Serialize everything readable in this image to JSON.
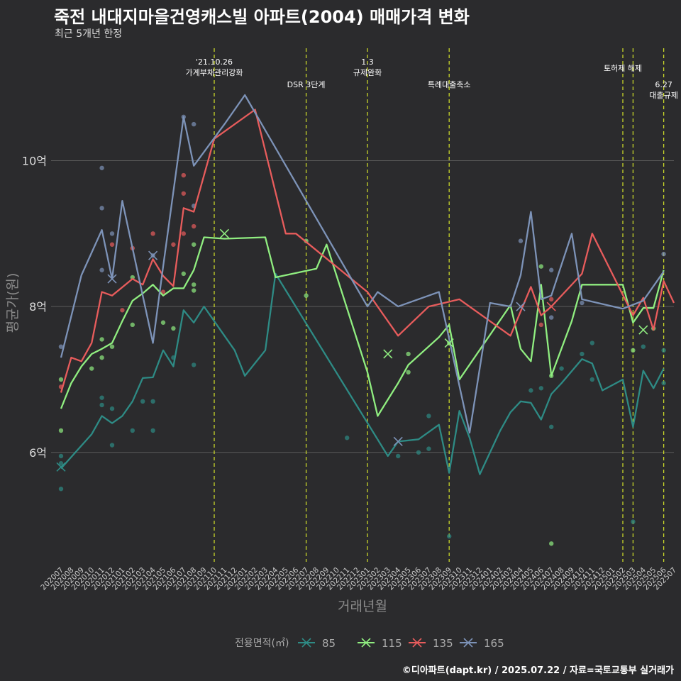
{
  "title": "죽전 내대지마을건영캐스빌 아파트(2004) 매매가격 변화",
  "subtitle": "최근 5개년 한정",
  "credit": "©디아파트(dapt.kr) / 2025.07.22 / 자료=국토교통부 실거래가",
  "colors": {
    "85": "#2e8b85",
    "115": "#90ee80",
    "135": "#e85c5c",
    "165": "#7d93b8",
    "vline": "#c8d62a",
    "grid": "#5a5a5a"
  },
  "chart_data": {
    "type": "line",
    "xlabel": "거래년월",
    "ylabel": "평균가(원)",
    "categories": [
      "202007",
      "202008",
      "202009",
      "202010",
      "202011",
      "202012",
      "202101",
      "202102",
      "202103",
      "202104",
      "202105",
      "202106",
      "202107",
      "202108",
      "202109",
      "202110",
      "202111",
      "202112",
      "202201",
      "202202",
      "202203",
      "202204",
      "202205",
      "202206",
      "202207",
      "202208",
      "202209",
      "202210",
      "202211",
      "202212",
      "202301",
      "202302",
      "202303",
      "202304",
      "202305",
      "202306",
      "202307",
      "202308",
      "202309",
      "202310",
      "202311",
      "202312",
      "202401",
      "202402",
      "202403",
      "202404",
      "202405",
      "202406",
      "202407",
      "202408",
      "202409",
      "202410",
      "202411",
      "202412",
      "202501",
      "202502",
      "202503",
      "202504",
      "202505",
      "202506",
      "202507"
    ],
    "yticks": [
      {
        "value": 6.0,
        "label": "6억"
      },
      {
        "value": 8.0,
        "label": "8억"
      },
      {
        "value": 10.0,
        "label": "10억"
      }
    ],
    "ylim": [
      4.5,
      11.6
    ],
    "legend": {
      "title": "전용면적(㎡)",
      "position": "bottom"
    },
    "series": [
      {
        "name": "85",
        "points": [
          [
            "202007",
            5.78
          ],
          [
            "202010",
            6.25
          ],
          [
            "202011",
            6.5
          ],
          [
            "202012",
            6.4
          ],
          [
            "202101",
            6.5
          ],
          [
            "202102",
            6.7
          ],
          [
            "202103",
            7.02
          ],
          [
            "202104",
            7.03
          ],
          [
            "202105",
            7.4
          ],
          [
            "202106",
            7.18
          ],
          [
            "202107",
            7.95
          ],
          [
            "202108",
            7.78
          ],
          [
            "202109",
            8.0
          ],
          [
            "202111",
            7.6
          ],
          [
            "202112",
            7.4
          ],
          [
            "202201",
            7.05
          ],
          [
            "202203",
            7.4
          ],
          [
            "202204",
            8.45
          ],
          [
            "202303",
            5.95
          ],
          [
            "202304",
            6.15
          ],
          [
            "202306",
            6.18
          ],
          [
            "202308",
            6.38
          ],
          [
            "202309",
            5.72
          ],
          [
            "202310",
            6.57
          ],
          [
            "202311",
            6.2
          ],
          [
            "202312",
            5.7
          ],
          [
            "202402",
            6.3
          ],
          [
            "202403",
            6.55
          ],
          [
            "202404",
            6.7
          ],
          [
            "202405",
            6.68
          ],
          [
            "202406",
            6.45
          ],
          [
            "202407",
            6.8
          ],
          [
            "202408",
            6.95
          ],
          [
            "202410",
            7.28
          ],
          [
            "202411",
            7.22
          ],
          [
            "202412",
            6.85
          ],
          [
            "202502",
            7.0
          ],
          [
            "202503",
            6.35
          ],
          [
            "202504",
            7.12
          ],
          [
            "202505",
            6.88
          ],
          [
            "202506",
            7.15
          ]
        ]
      },
      {
        "name": "115",
        "points": [
          [
            "202007",
            6.6
          ],
          [
            "202008",
            6.95
          ],
          [
            "202009",
            7.18
          ],
          [
            "202010",
            7.35
          ],
          [
            "202011",
            7.42
          ],
          [
            "202012",
            7.5
          ],
          [
            "202101",
            7.8
          ],
          [
            "202102",
            8.08
          ],
          [
            "202103",
            8.18
          ],
          [
            "202104",
            8.3
          ],
          [
            "202105",
            8.15
          ],
          [
            "202106",
            8.25
          ],
          [
            "202107",
            8.25
          ],
          [
            "202108",
            8.5
          ],
          [
            "202109",
            8.95
          ],
          [
            "202111",
            8.93
          ],
          [
            "202203",
            8.95
          ],
          [
            "202204",
            8.4
          ],
          [
            "202208",
            8.52
          ],
          [
            "202209",
            8.85
          ],
          [
            "202301",
            7.1
          ],
          [
            "202302",
            6.5
          ],
          [
            "202304",
            6.95
          ],
          [
            "202305",
            7.2
          ],
          [
            "202308",
            7.58
          ],
          [
            "202309",
            7.75
          ],
          [
            "202310",
            7.0
          ],
          [
            "202403",
            8.02
          ],
          [
            "202404",
            7.42
          ],
          [
            "202405",
            7.25
          ],
          [
            "202406",
            8.3
          ],
          [
            "202407",
            7.05
          ],
          [
            "202409",
            7.8
          ],
          [
            "202410",
            8.3
          ],
          [
            "202502",
            8.3
          ],
          [
            "202503",
            7.78
          ],
          [
            "202504",
            7.98
          ],
          [
            "202505",
            7.98
          ],
          [
            "202506",
            8.5
          ]
        ]
      },
      {
        "name": "135",
        "points": [
          [
            "202007",
            6.82
          ],
          [
            "202008",
            7.3
          ],
          [
            "202009",
            7.25
          ],
          [
            "202010",
            7.5
          ],
          [
            "202011",
            8.2
          ],
          [
            "202012",
            8.15
          ],
          [
            "202102",
            8.38
          ],
          [
            "202103",
            8.3
          ],
          [
            "202104",
            8.65
          ],
          [
            "202105",
            8.42
          ],
          [
            "202106",
            8.28
          ],
          [
            "202107",
            9.35
          ],
          [
            "202108",
            9.3
          ],
          [
            "202110",
            10.3
          ],
          [
            "202202",
            10.7
          ],
          [
            "202205",
            9.0
          ],
          [
            "202206",
            9.0
          ],
          [
            "202301",
            8.2
          ],
          [
            "202304",
            7.6
          ],
          [
            "202307",
            8.0
          ],
          [
            "202310",
            8.1
          ],
          [
            "202403",
            7.6
          ],
          [
            "202405",
            8.27
          ],
          [
            "202406",
            7.88
          ],
          [
            "202407",
            8.0
          ],
          [
            "202410",
            8.45
          ],
          [
            "202411",
            9.0
          ],
          [
            "202503",
            7.88
          ],
          [
            "202504",
            8.12
          ],
          [
            "202505",
            7.68
          ],
          [
            "202506",
            8.35
          ],
          [
            "202507",
            8.05
          ]
        ]
      },
      {
        "name": "165",
        "points": [
          [
            "202007",
            7.3
          ],
          [
            "202009",
            8.43
          ],
          [
            "202011",
            9.05
          ],
          [
            "202012",
            8.38
          ],
          [
            "202101",
            9.45
          ],
          [
            "202104",
            7.5
          ],
          [
            "202105",
            8.55
          ],
          [
            "202107",
            10.6
          ],
          [
            "202108",
            9.93
          ],
          [
            "202111",
            10.5
          ],
          [
            "202201",
            10.9
          ],
          [
            "202301",
            8.0
          ],
          [
            "202302",
            8.2
          ],
          [
            "202304",
            8.0
          ],
          [
            "202308",
            8.2
          ],
          [
            "202311",
            6.27
          ],
          [
            "202401",
            8.05
          ],
          [
            "202403",
            8.0
          ],
          [
            "202404",
            8.43
          ],
          [
            "202405",
            9.3
          ],
          [
            "202406",
            8.1
          ],
          [
            "202407",
            8.15
          ],
          [
            "202409",
            9.0
          ],
          [
            "202410",
            8.1
          ],
          [
            "202502",
            7.97
          ],
          [
            "202504",
            8.08
          ],
          [
            "202506",
            8.48
          ]
        ]
      }
    ],
    "scatter": [
      {
        "series": "85",
        "points": [
          [
            "202007",
            5.5
          ],
          [
            "202007",
            5.85
          ],
          [
            "202007",
            5.95
          ],
          [
            "202011",
            6.75
          ],
          [
            "202011",
            6.65
          ],
          [
            "202012",
            6.6
          ],
          [
            "202012",
            6.1
          ],
          [
            "202102",
            6.3
          ],
          [
            "202103",
            6.7
          ],
          [
            "202104",
            6.3
          ],
          [
            "202104",
            6.7
          ],
          [
            "202106",
            7.3
          ],
          [
            "202108",
            7.2
          ],
          [
            "202211",
            6.2
          ],
          [
            "202304",
            5.95
          ],
          [
            "202306",
            6.0
          ],
          [
            "202307",
            6.5
          ],
          [
            "202307",
            6.05
          ],
          [
            "202309",
            4.85
          ],
          [
            "202405",
            6.85
          ],
          [
            "202406",
            6.88
          ],
          [
            "202407",
            6.35
          ],
          [
            "202408",
            7.15
          ],
          [
            "202410",
            7.35
          ],
          [
            "202411",
            7.5
          ],
          [
            "202411",
            7.0
          ],
          [
            "202503",
            5.05
          ],
          [
            "202504",
            7.45
          ],
          [
            "202506",
            6.95
          ],
          [
            "202506",
            7.4
          ]
        ]
      },
      {
        "name": "115",
        "series": "115",
        "points": [
          [
            "202007",
            6.3
          ],
          [
            "202007",
            7.0
          ],
          [
            "202010",
            7.15
          ],
          [
            "202011",
            7.3
          ],
          [
            "202011",
            7.55
          ],
          [
            "202012",
            7.45
          ],
          [
            "202102",
            7.75
          ],
          [
            "202102",
            8.4
          ],
          [
            "202105",
            7.78
          ],
          [
            "202106",
            7.7
          ],
          [
            "202107",
            8.45
          ],
          [
            "202108",
            8.85
          ],
          [
            "202108",
            8.3
          ],
          [
            "202108",
            8.22
          ],
          [
            "202207",
            8.9
          ],
          [
            "202207",
            8.15
          ],
          [
            "202305",
            7.1
          ],
          [
            "202305",
            7.35
          ],
          [
            "202309",
            7.5
          ],
          [
            "202406",
            8.55
          ],
          [
            "202407",
            7.05
          ],
          [
            "202407",
            4.75
          ],
          [
            "202503",
            7.4
          ],
          [
            "202505",
            7.7
          ]
        ]
      },
      {
        "series": "135",
        "points": [
          [
            "202007",
            6.9
          ],
          [
            "202012",
            8.85
          ],
          [
            "202101",
            7.95
          ],
          [
            "202102",
            8.8
          ],
          [
            "202104",
            9.0
          ],
          [
            "202105",
            8.2
          ],
          [
            "202106",
            8.85
          ],
          [
            "202107",
            9.8
          ],
          [
            "202107",
            9.55
          ],
          [
            "202107",
            9.0
          ],
          [
            "202108",
            9.1
          ],
          [
            "202406",
            7.75
          ],
          [
            "202407",
            8.1
          ]
        ]
      },
      {
        "series": "165",
        "points": [
          [
            "202007",
            7.45
          ],
          [
            "202011",
            9.9
          ],
          [
            "202011",
            9.35
          ],
          [
            "202011",
            8.5
          ],
          [
            "202012",
            9.0
          ],
          [
            "202104",
            8.7
          ],
          [
            "202107",
            10.6
          ],
          [
            "202108",
            10.5
          ],
          [
            "202108",
            9.38
          ],
          [
            "202404",
            8.9
          ],
          [
            "202407",
            8.5
          ],
          [
            "202407",
            7.85
          ],
          [
            "202410",
            8.05
          ],
          [
            "202506",
            8.72
          ]
        ]
      }
    ],
    "markers": [
      {
        "series": "85",
        "x": "202007",
        "y": 5.8
      },
      {
        "series": "115",
        "x": "202111",
        "y": 9.0
      },
      {
        "series": "115",
        "x": "202303",
        "y": 7.35
      },
      {
        "series": "115",
        "x": "202309",
        "y": 7.5
      },
      {
        "series": "115",
        "x": "202504",
        "y": 7.68
      },
      {
        "series": "135",
        "x": "202407",
        "y": 8.0
      },
      {
        "series": "165",
        "x": "202012",
        "y": 8.38
      },
      {
        "series": "165",
        "x": "202104",
        "y": 8.7
      },
      {
        "series": "165",
        "x": "202404",
        "y": 8.0
      },
      {
        "series": "165",
        "x": "202304",
        "y": 6.15
      }
    ],
    "vlines": [
      {
        "x": "202110",
        "lines": [
          "'21.10.26",
          "가계부채관리강화"
        ],
        "row": 0
      },
      {
        "x": "202207",
        "lines": [
          "DSR 3단계"
        ],
        "row": 2
      },
      {
        "x": "202301",
        "lines": [
          "1.3",
          "규제완화"
        ],
        "row": 0
      },
      {
        "x": "202309",
        "lines": [
          "특례대출축소"
        ],
        "row": 2
      },
      {
        "x": "202502",
        "lines": [
          "토허제 해제"
        ],
        "row": 1
      },
      {
        "x": "202503",
        "lines": [],
        "row": 1
      },
      {
        "x": "202506",
        "lines": [
          "6.27",
          "대출규제"
        ],
        "row": 2
      }
    ]
  }
}
